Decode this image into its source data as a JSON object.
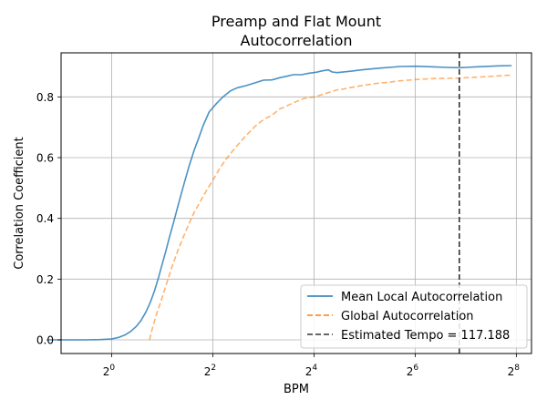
{
  "chart_data": {
    "type": "line",
    "title_line1": "Preamp and Flat Mount",
    "title_line2": "Autocorrelation",
    "xlabel": "BPM",
    "ylabel": "Correlation Coefficient",
    "x_scale": "log2",
    "xlim_exp": [
      -1.0,
      8.3
    ],
    "ylim": [
      -0.045,
      0.945
    ],
    "grid": true,
    "legend_position": "lower-right",
    "x_ticks": [
      {
        "exp": 0,
        "base": "2",
        "sup": "0"
      },
      {
        "exp": 2,
        "base": "2",
        "sup": "2"
      },
      {
        "exp": 4,
        "base": "2",
        "sup": "4"
      },
      {
        "exp": 6,
        "base": "2",
        "sup": "6"
      },
      {
        "exp": 8,
        "base": "2",
        "sup": "8"
      }
    ],
    "y_ticks": [
      {
        "value": 0.0,
        "label": "0.0"
      },
      {
        "value": 0.2,
        "label": "0.2"
      },
      {
        "value": 0.4,
        "label": "0.4"
      },
      {
        "value": 0.6,
        "label": "0.6"
      },
      {
        "value": 0.8,
        "label": "0.8"
      }
    ],
    "series": [
      {
        "name": "Mean Local Autocorrelation",
        "color": "#1f77b4",
        "style": "solid",
        "points": [
          [
            0.41,
            0.0
          ],
          [
            0.55,
            0.0
          ],
          [
            0.7,
            0.0
          ],
          [
            0.85,
            0.001
          ],
          [
            1.0,
            0.003
          ],
          [
            1.1,
            0.008
          ],
          [
            1.2,
            0.016
          ],
          [
            1.3,
            0.028
          ],
          [
            1.4,
            0.044
          ],
          [
            1.5,
            0.065
          ],
          [
            1.6,
            0.092
          ],
          [
            1.7,
            0.124
          ],
          [
            1.8,
            0.162
          ],
          [
            1.9,
            0.205
          ],
          [
            2.0,
            0.25
          ],
          [
            2.1,
            0.292
          ],
          [
            2.2,
            0.335
          ],
          [
            2.35,
            0.392
          ],
          [
            2.5,
            0.448
          ],
          [
            2.7,
            0.515
          ],
          [
            2.9,
            0.575
          ],
          [
            3.1,
            0.625
          ],
          [
            3.3,
            0.665
          ],
          [
            3.5,
            0.705
          ],
          [
            3.8,
            0.75
          ],
          [
            4.2,
            0.778
          ],
          [
            4.6,
            0.8
          ],
          [
            5.1,
            0.82
          ],
          [
            5.6,
            0.83
          ],
          [
            6.3,
            0.837
          ],
          [
            7.0,
            0.845
          ],
          [
            8.0,
            0.855
          ],
          [
            9.0,
            0.856
          ],
          [
            10.0,
            0.863
          ],
          [
            11.0,
            0.868
          ],
          [
            12.0,
            0.873
          ],
          [
            13.5,
            0.873
          ],
          [
            15.0,
            0.878
          ],
          [
            16.5,
            0.881
          ],
          [
            18.0,
            0.886
          ],
          [
            19.5,
            0.889
          ],
          [
            20.5,
            0.882
          ],
          [
            22.0,
            0.88
          ],
          [
            26.0,
            0.884
          ],
          [
            32.0,
            0.89
          ],
          [
            40.0,
            0.895
          ],
          [
            52.0,
            0.9
          ],
          [
            65.0,
            0.901
          ],
          [
            80.0,
            0.899
          ],
          [
            100.0,
            0.897
          ],
          [
            117.188,
            0.896
          ],
          [
            150.0,
            0.899
          ],
          [
            200.0,
            0.902
          ],
          [
            240.0,
            0.903
          ]
        ]
      },
      {
        "name": "Global Autocorrelation",
        "color": "#ff7f0e",
        "style": "dashed",
        "points": [
          [
            1.68,
            0.0
          ],
          [
            1.75,
            0.04
          ],
          [
            1.85,
            0.085
          ],
          [
            2.0,
            0.14
          ],
          [
            2.15,
            0.195
          ],
          [
            2.3,
            0.245
          ],
          [
            2.5,
            0.3
          ],
          [
            2.7,
            0.345
          ],
          [
            2.9,
            0.385
          ],
          [
            3.1,
            0.42
          ],
          [
            3.4,
            0.46
          ],
          [
            3.7,
            0.495
          ],
          [
            4.0,
            0.525
          ],
          [
            4.4,
            0.565
          ],
          [
            4.8,
            0.595
          ],
          [
            5.3,
            0.625
          ],
          [
            5.9,
            0.655
          ],
          [
            6.5,
            0.68
          ],
          [
            7.2,
            0.705
          ],
          [
            8.0,
            0.725
          ],
          [
            9.0,
            0.74
          ],
          [
            10.0,
            0.76
          ],
          [
            11.0,
            0.77
          ],
          [
            12.0,
            0.78
          ],
          [
            14.0,
            0.795
          ],
          [
            16.0,
            0.8
          ],
          [
            18.0,
            0.808
          ],
          [
            20.0,
            0.816
          ],
          [
            22.0,
            0.823
          ],
          [
            24.0,
            0.826
          ],
          [
            26.0,
            0.83
          ],
          [
            30.0,
            0.836
          ],
          [
            36.0,
            0.843
          ],
          [
            44.0,
            0.848
          ],
          [
            52.0,
            0.853
          ],
          [
            64.0,
            0.857
          ],
          [
            80.0,
            0.86
          ],
          [
            100.0,
            0.861
          ],
          [
            117.188,
            0.862
          ],
          [
            150.0,
            0.865
          ],
          [
            200.0,
            0.869
          ],
          [
            240.0,
            0.872
          ]
        ]
      },
      {
        "name": "Estimated Tempo = 117.188",
        "color": "#333333",
        "style": "dashed-vertical",
        "x": 117.188
      }
    ]
  }
}
